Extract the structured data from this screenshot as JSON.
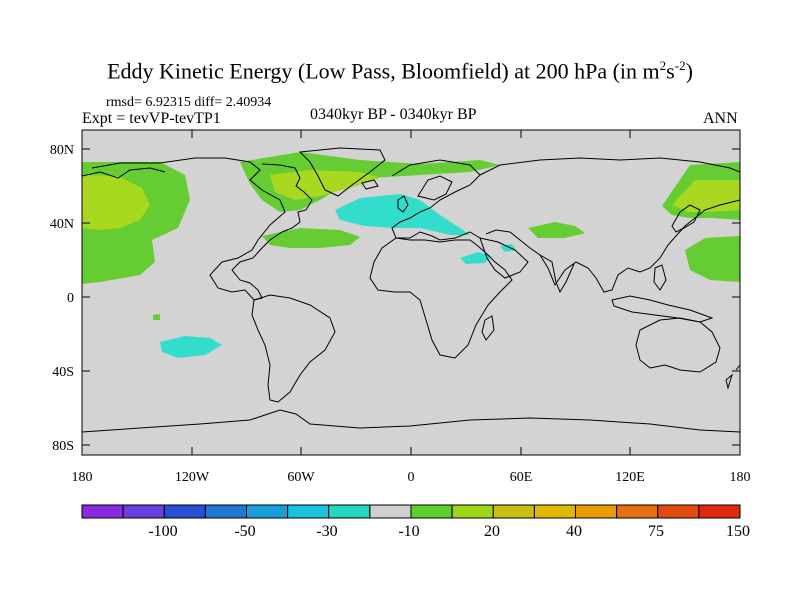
{
  "title": {
    "main": "Eddy Kinetic Energy (Low Pass, Bloomfield) at 200 hPa (in m",
    "sup1": "2",
    "mid": "s",
    "sup2": "-2",
    "end": ")"
  },
  "stats": {
    "rmsd_label": "rmsd=",
    "rmsd": "6.92315",
    "diff_label": "diff=",
    "diff": "2.40934"
  },
  "experiment": "Expt = tevVP-tevTP1",
  "period": "0340kyr BP - 0340kyr BP",
  "season": "ANN",
  "axes": {
    "lat_labels": [
      "80N",
      "40N",
      "0",
      "40S",
      "80S"
    ],
    "lon_labels": [
      "180",
      "120W",
      "60W",
      "0",
      "60E",
      "120E",
      "180"
    ]
  },
  "colorbar": {
    "colors": [
      "#8a2be2",
      "#6a3ee0",
      "#2a4ed6",
      "#1e78d2",
      "#1a9ed8",
      "#1ac0dc",
      "#22d9c0",
      "#cfcfcf",
      "#5ad02a",
      "#a0d41a",
      "#c8c010",
      "#e0b800",
      "#e89a00",
      "#e47010",
      "#e04c10",
      "#e02a10"
    ],
    "labels": [
      "-100",
      "-50",
      "-30",
      "-10",
      "20",
      "40",
      "75",
      "150"
    ]
  },
  "palette": {
    "land_bg": "#d3d3d3",
    "green": "#66cc33",
    "yellowgreen": "#a8d820",
    "cyan": "#33ddcc"
  }
}
